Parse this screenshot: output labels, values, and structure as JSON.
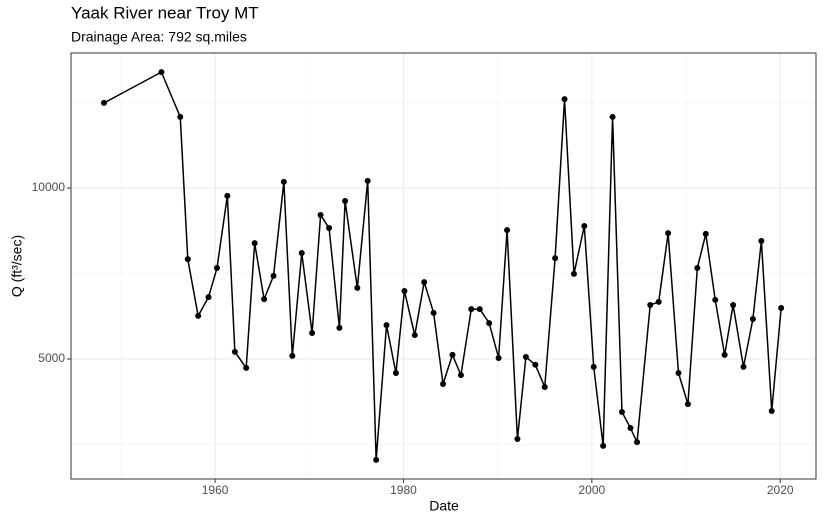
{
  "chart_data": {
    "type": "line",
    "title": "Yaak River near Troy MT",
    "subtitle": "Drainage Area: 792 sq.miles",
    "x_label": "Date",
    "y_label": "Q (ft³/sec)",
    "color": "#000000",
    "x": [
      1948.2,
      1954.3,
      1956.3,
      1957.1,
      1958.2,
      1959.3,
      1960.2,
      1961.3,
      1962.1,
      1963.3,
      1964.2,
      1965.2,
      1966.2,
      1967.3,
      1968.2,
      1969.2,
      1970.3,
      1971.2,
      1972.1,
      1973.2,
      1973.8,
      1975.1,
      1976.2,
      1977.1,
      1978.2,
      1979.2,
      1980.1,
      1981.2,
      1982.2,
      1983.2,
      1984.2,
      1985.2,
      1986.1,
      1987.2,
      1988.1,
      1989.1,
      1990.1,
      1991.0,
      1992.1,
      1993.0,
      1994.0,
      1995.0,
      1996.1,
      1997.1,
      1998.1,
      1999.2,
      2000.2,
      2001.2,
      2002.2,
      2003.2,
      2004.1,
      2004.8,
      2006.2,
      2007.1,
      2008.1,
      2009.2,
      2010.2,
      2011.2,
      2012.1,
      2013.1,
      2014.1,
      2015.0,
      2016.1,
      2017.1,
      2018.0,
      2019.1,
      2020.1
    ],
    "values": [
      12490,
      13390,
      12080,
      7920,
      6260,
      6810,
      7660,
      9770,
      5210,
      4740,
      8390,
      6750,
      7430,
      10180,
      5090,
      8100,
      5760,
      9210,
      8830,
      5910,
      9620,
      7080,
      10210,
      2050,
      5990,
      4590,
      6990,
      5700,
      7250,
      6350,
      4270,
      5120,
      4530,
      6460,
      6460,
      6050,
      5030,
      8770,
      2660,
      5060,
      4830,
      4180,
      7950,
      12600,
      7490,
      8890,
      4770,
      2460,
      12080,
      3450,
      2980,
      2570,
      6580,
      6670,
      8680,
      4590,
      3680,
      7660,
      8660,
      6730,
      5120,
      6580,
      4770,
      6170,
      8450,
      3480,
      6490
    ],
    "xlim": [
      1944.7,
      2023.8
    ],
    "ylim": [
      1490,
      13950
    ],
    "xticks": [
      1960,
      1980,
      2000,
      2020
    ],
    "yticks": [
      5000,
      10000
    ],
    "x_minor_grid": [
      1950,
      1970,
      1990,
      2010
    ],
    "y_minor_grid": [
      2500,
      7500,
      12500
    ],
    "grid": true
  }
}
